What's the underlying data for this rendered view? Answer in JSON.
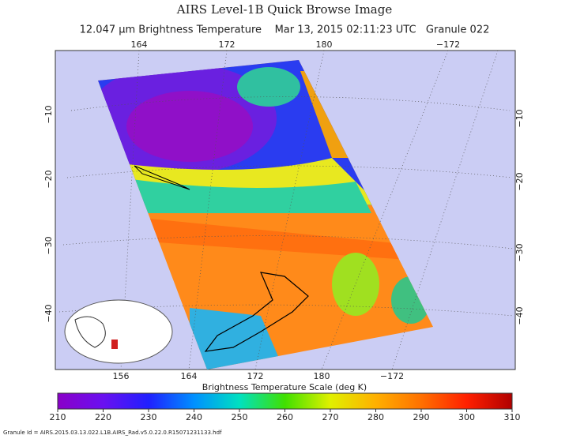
{
  "header": {
    "title": "AIRS Level-1B Quick Browse Image",
    "subtitle": "12.047 μm Brightness Temperature    Mar 13, 2015 02:11:23 UTC   Granule 022"
  },
  "map": {
    "top_lon_labels": [
      "164",
      "172",
      "180",
      "−172"
    ],
    "bottom_lon_labels": [
      "156",
      "164",
      "172",
      "180",
      "−172"
    ],
    "left_lat_labels": [
      "−10",
      "−20",
      "−30",
      "−40"
    ],
    "right_lat_labels": [
      "−10",
      "−20",
      "−30",
      "−40"
    ]
  },
  "colorbar": {
    "title": "Brightness Temperature Scale (deg K)",
    "range": [
      210,
      310
    ],
    "ticks": [
      210,
      220,
      230,
      240,
      250,
      260,
      270,
      280,
      290,
      300,
      310
    ]
  },
  "footer": "Granule Id = AIRS.2015.03.13.022.L1B.AIRS_Rad.v5.0.22.0.R15071231133.hdf"
}
